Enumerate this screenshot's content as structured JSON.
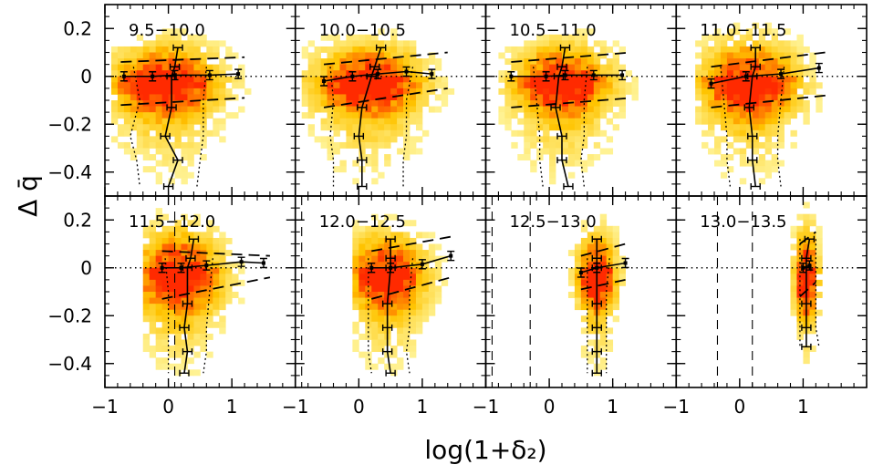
{
  "chart_data": {
    "type": "heatmap",
    "layout": {
      "rows": 2,
      "cols": 4
    },
    "xlabel": "log(1+δ₂)",
    "ylabel": "Δ q̄",
    "xlim": [
      -1,
      2
    ],
    "ylim": [
      -0.5,
      0.3
    ],
    "xticks": [
      -1,
      0,
      1
    ],
    "xtick_labels": [
      "−1",
      "0",
      "1"
    ],
    "yticks": [
      -0.4,
      -0.2,
      0,
      0.2
    ],
    "ytick_labels": [
      "−0.4",
      "−0.2",
      "0",
      "0.2"
    ],
    "reference_line": {
      "y": 0,
      "style": "dotted"
    },
    "panels": [
      {
        "label": "9.5−10.0",
        "mass_bin": [
          9.5,
          10.0
        ],
        "vlines": [],
        "density": {
          "x_center": -0.05,
          "x_spread": 0.55,
          "x_min": -0.85,
          "x_max": 1.5,
          "y_center": 0.0,
          "y_spread": 0.09
        },
        "median_vs_x": {
          "x": [
            -0.7,
            -0.25,
            0.1,
            0.65,
            1.1
          ],
          "y": [
            0.0,
            0.0,
            0.005,
            0.005,
            0.01
          ]
        },
        "quartile_upper_vs_x": {
          "x": [
            -0.75,
            1.2
          ],
          "y": [
            0.06,
            0.08
          ]
        },
        "quartile_lower_vs_x": {
          "x": [
            -0.75,
            1.2
          ],
          "y": [
            -0.12,
            -0.09
          ]
        },
        "median_vs_y": {
          "y": [
            0.12,
            0.04,
            0.0,
            -0.13,
            -0.25,
            -0.35,
            -0.46
          ],
          "x": [
            0.15,
            0.1,
            0.05,
            0.05,
            -0.05,
            0.15,
            0.0
          ]
        },
        "percentiles_vs_y": {
          "y": [
            0.04,
            -0.1,
            -0.25,
            -0.35,
            -0.46
          ],
          "x_low": [
            -0.55,
            -0.45,
            -0.6,
            -0.5,
            -0.45
          ],
          "x_high": [
            0.6,
            0.55,
            0.55,
            0.5,
            0.45
          ]
        }
      },
      {
        "label": "10.0−10.5",
        "mass_bin": [
          10.0,
          10.5
        ],
        "vlines": [],
        "density": {
          "x_center": 0.15,
          "x_spread": 0.55,
          "x_min": -0.85,
          "x_max": 1.6,
          "y_center": 0.0,
          "y_spread": 0.09
        },
        "median_vs_x": {
          "x": [
            -0.55,
            -0.1,
            0.3,
            0.75,
            1.15
          ],
          "y": [
            -0.02,
            0.0,
            0.01,
            0.02,
            0.01
          ]
        },
        "quartile_upper_vs_x": {
          "x": [
            -0.55,
            1.4
          ],
          "y": [
            0.05,
            0.1
          ]
        },
        "quartile_lower_vs_x": {
          "x": [
            -0.55,
            1.4
          ],
          "y": [
            -0.13,
            -0.05
          ]
        },
        "median_vs_y": {
          "y": [
            0.12,
            0.04,
            0.0,
            -0.13,
            -0.25,
            -0.35,
            -0.46
          ],
          "x": [
            0.35,
            0.25,
            0.2,
            0.05,
            0.0,
            0.05,
            0.05
          ]
        },
        "percentiles_vs_y": {
          "y": [
            0.04,
            -0.1,
            -0.25,
            -0.35,
            -0.46
          ],
          "x_low": [
            -0.45,
            -0.4,
            -0.45,
            -0.4,
            -0.4
          ],
          "x_high": [
            0.85,
            0.75,
            0.75,
            0.7,
            0.7
          ]
        }
      },
      {
        "label": "10.5−11.0",
        "mass_bin": [
          10.5,
          11.0
        ],
        "vlines": [],
        "density": {
          "x_center": 0.2,
          "x_spread": 0.5,
          "x_min": -0.8,
          "x_max": 1.6,
          "y_center": 0.0,
          "y_spread": 0.09
        },
        "median_vs_x": {
          "x": [
            -0.6,
            -0.05,
            0.25,
            0.7,
            1.15
          ],
          "y": [
            0.0,
            0.0,
            0.005,
            0.005,
            0.005
          ]
        },
        "quartile_upper_vs_x": {
          "x": [
            -0.6,
            1.3
          ],
          "y": [
            0.06,
            0.1
          ]
        },
        "quartile_lower_vs_x": {
          "x": [
            -0.6,
            1.3
          ],
          "y": [
            -0.13,
            -0.09
          ]
        },
        "median_vs_y": {
          "y": [
            0.12,
            0.04,
            0.0,
            -0.13,
            -0.25,
            -0.35,
            -0.46
          ],
          "x": [
            0.25,
            0.2,
            0.15,
            0.1,
            0.2,
            0.2,
            0.3
          ]
        },
        "percentiles_vs_y": {
          "y": [
            0.04,
            -0.1,
            -0.25,
            -0.35,
            -0.46
          ],
          "x_low": [
            -0.25,
            -0.2,
            -0.15,
            -0.15,
            -0.1
          ],
          "x_high": [
            0.6,
            0.55,
            0.55,
            0.5,
            0.55
          ]
        }
      },
      {
        "label": "11.0−11.5",
        "mass_bin": [
          11.0,
          11.5
        ],
        "vlines": [],
        "density": {
          "x_center": 0.15,
          "x_spread": 0.5,
          "x_min": -0.7,
          "x_max": 1.7,
          "y_center": 0.0,
          "y_spread": 0.1
        },
        "median_vs_x": {
          "x": [
            -0.45,
            0.1,
            0.65,
            1.25
          ],
          "y": [
            -0.03,
            0.0,
            0.01,
            0.035
          ]
        },
        "quartile_upper_vs_x": {
          "x": [
            -0.45,
            1.35
          ],
          "y": [
            0.04,
            0.1
          ]
        },
        "quartile_lower_vs_x": {
          "x": [
            -0.45,
            1.35
          ],
          "y": [
            -0.13,
            -0.08
          ]
        },
        "median_vs_y": {
          "y": [
            0.12,
            0.04,
            0.0,
            -0.13,
            -0.25,
            -0.35,
            -0.46
          ],
          "x": [
            0.25,
            0.25,
            0.2,
            0.15,
            0.2,
            0.2,
            0.25
          ]
        },
        "percentiles_vs_y": {
          "y": [
            0.04,
            -0.1,
            -0.25,
            -0.35,
            -0.46
          ],
          "x_low": [
            -0.3,
            -0.25,
            -0.2,
            -0.2,
            -0.15
          ],
          "x_high": [
            0.7,
            0.65,
            0.6,
            0.6,
            0.65
          ]
        }
      },
      {
        "label": "11.5−12.0",
        "mass_bin": [
          11.5,
          12.0
        ],
        "vlines": [
          0.1
        ],
        "density": {
          "x_center": 0.15,
          "x_spread": 0.45,
          "x_min": -0.45,
          "x_max": 1.7,
          "y_center": 0.0,
          "y_spread": 0.11
        },
        "median_vs_x": {
          "x": [
            -0.1,
            0.2,
            0.6,
            1.15,
            1.5
          ],
          "y": [
            0.0,
            0.0,
            0.01,
            0.025,
            0.02
          ]
        },
        "quartile_upper_vs_x": {
          "x": [
            -0.1,
            1.6
          ],
          "y": [
            0.07,
            0.05
          ]
        },
        "quartile_lower_vs_x": {
          "x": [
            -0.1,
            1.6
          ],
          "y": [
            -0.13,
            -0.04
          ]
        },
        "median_vs_y": {
          "y": [
            0.12,
            0.04,
            0.0,
            -0.15,
            -0.25,
            -0.35,
            -0.44
          ],
          "x": [
            0.4,
            0.35,
            0.3,
            0.3,
            0.25,
            0.3,
            0.25
          ]
        },
        "percentiles_vs_y": {
          "y": [
            0.04,
            -0.1,
            -0.25,
            -0.35,
            -0.44
          ],
          "x_low": [
            -0.05,
            0.0,
            0.0,
            0.0,
            0.0
          ],
          "x_high": [
            0.7,
            0.65,
            0.6,
            0.6,
            0.55
          ]
        }
      },
      {
        "label": "12.0−12.5",
        "mass_bin": [
          12.0,
          12.5
        ],
        "vlines": [
          -0.9
        ],
        "density": {
          "x_center": 0.45,
          "x_spread": 0.4,
          "x_min": -0.1,
          "x_max": 1.6,
          "y_center": 0.0,
          "y_spread": 0.1
        },
        "median_vs_x": {
          "x": [
            0.2,
            0.5,
            1.0,
            1.45
          ],
          "y": [
            0.0,
            0.0,
            0.015,
            0.05
          ]
        },
        "quartile_upper_vs_x": {
          "x": [
            0.2,
            1.45
          ],
          "y": [
            0.07,
            0.13
          ]
        },
        "quartile_lower_vs_x": {
          "x": [
            0.2,
            1.45
          ],
          "y": [
            -0.13,
            -0.04
          ]
        },
        "median_vs_y": {
          "y": [
            0.12,
            0.04,
            0.0,
            -0.15,
            -0.25,
            -0.35,
            -0.44
          ],
          "x": [
            0.5,
            0.5,
            0.5,
            0.45,
            0.45,
            0.45,
            0.5
          ]
        },
        "percentiles_vs_y": {
          "y": [
            0.04,
            -0.1,
            -0.25,
            -0.35,
            -0.44
          ],
          "x_low": [
            0.15,
            0.15,
            0.15,
            0.15,
            0.2
          ],
          "x_high": [
            0.85,
            0.8,
            0.8,
            0.75,
            0.8
          ]
        }
      },
      {
        "label": "12.5−13.0",
        "mass_bin": [
          12.5,
          13.0
        ],
        "vlines": [
          -0.9,
          -0.3
        ],
        "density": {
          "x_center": 0.75,
          "x_spread": 0.2,
          "x_min": 0.3,
          "x_max": 1.3,
          "y_center": 0.0,
          "y_spread": 0.1
        },
        "median_vs_x": {
          "x": [
            0.5,
            0.75,
            1.2
          ],
          "y": [
            -0.02,
            0.0,
            0.02
          ]
        },
        "quartile_upper_vs_x": {
          "x": [
            0.5,
            1.2
          ],
          "y": [
            0.05,
            0.1
          ]
        },
        "quartile_lower_vs_x": {
          "x": [
            0.5,
            1.2
          ],
          "y": [
            -0.09,
            -0.05
          ]
        },
        "median_vs_y": {
          "y": [
            0.12,
            0.04,
            0.0,
            -0.15,
            -0.25,
            -0.35,
            -0.44
          ],
          "x": [
            0.75,
            0.75,
            0.75,
            0.75,
            0.75,
            0.75,
            0.75
          ]
        },
        "percentiles_vs_y": {
          "y": [
            0.04,
            -0.1,
            -0.25,
            -0.35,
            -0.44
          ],
          "x_low": [
            0.6,
            0.6,
            0.6,
            0.6,
            0.6
          ],
          "x_high": [
            0.95,
            0.9,
            0.9,
            0.9,
            0.9
          ]
        }
      },
      {
        "label": "13.0−13.5",
        "mass_bin": [
          13.0,
          13.5
        ],
        "vlines": [
          -0.35,
          0.2
        ],
        "density": {
          "x_center": 1.05,
          "x_spread": 0.12,
          "x_min": 0.85,
          "x_max": 1.25,
          "y_center": 0.0,
          "y_spread": 0.12
        },
        "median_vs_x": {
          "x": [
            1.0,
            1.1
          ],
          "y": [
            0.0,
            0.01
          ]
        },
        "quartile_upper_vs_x": {
          "x": [
            0.95,
            1.2
          ],
          "y": [
            0.1,
            0.15
          ]
        },
        "quartile_lower_vs_x": {
          "x": [
            0.95,
            1.2
          ],
          "y": [
            -0.12,
            -0.06
          ]
        },
        "median_vs_y": {
          "y": [
            0.12,
            0.04,
            0.0,
            -0.15,
            -0.25,
            -0.33
          ],
          "x": [
            1.1,
            1.05,
            1.05,
            1.05,
            1.05,
            1.05
          ]
        },
        "percentiles_vs_y": {
          "y": [
            0.12,
            0.0,
            -0.15,
            -0.25,
            -0.33
          ],
          "x_low": [
            0.95,
            0.95,
            0.95,
            0.95,
            0.95
          ],
          "x_high": [
            1.2,
            1.2,
            1.2,
            1.2,
            1.25
          ]
        }
      }
    ]
  },
  "colors": {
    "heat_low": "#fffbb0",
    "heat_mid": "#ffc400",
    "heat_high": "#ff2a00",
    "axes": "#000000"
  }
}
